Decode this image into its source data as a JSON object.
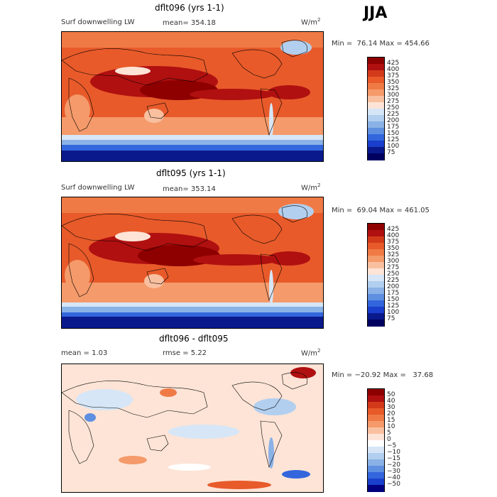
{
  "season": "JJA",
  "panels": [
    {
      "title": "dflt096 (yrs 1-1)",
      "left_label": "Surf downwelling LW",
      "mean_label": "mean= 354.18",
      "units": "W/m",
      "units_sup": "2",
      "stats": "Min =  76.14 Max = 454.66",
      "colorbar": {
        "labels": [
          "425",
          "400",
          "375",
          "350",
          "325",
          "300",
          "275",
          "250",
          "225",
          "200",
          "175",
          "150",
          "125",
          "100",
          "75"
        ],
        "colors": [
          "#8e0000",
          "#b01010",
          "#d23a1a",
          "#e85a2a",
          "#f07a45",
          "#f59a6a",
          "#f9c0a0",
          "#fde4d6",
          "#d6e6f7",
          "#b2cfef",
          "#8ab2e6",
          "#5f8fe0",
          "#3366dd",
          "#1a3fcc",
          "#0a1a8c",
          "#000060"
        ]
      }
    },
    {
      "title": "dflt095 (yrs 1-1)",
      "left_label": "Surf downwelling LW",
      "mean_label": "mean= 353.14",
      "units": "W/m",
      "units_sup": "2",
      "stats": "Min =  69.04 Max = 461.05",
      "colorbar": {
        "labels": [
          "425",
          "400",
          "375",
          "350",
          "325",
          "300",
          "275",
          "250",
          "225",
          "200",
          "175",
          "150",
          "125",
          "100",
          "75"
        ],
        "colors": [
          "#8e0000",
          "#b01010",
          "#d23a1a",
          "#e85a2a",
          "#f07a45",
          "#f59a6a",
          "#f9c0a0",
          "#fde4d6",
          "#d6e6f7",
          "#b2cfef",
          "#8ab2e6",
          "#5f8fe0",
          "#3366dd",
          "#1a3fcc",
          "#0a1a8c",
          "#000060"
        ]
      }
    },
    {
      "title": "dflt096 - dflt095",
      "left_label": "mean =    1.03",
      "mean_label": "rmse =    5.22",
      "units": "W/m",
      "units_sup": "2",
      "stats": "Min = −20.92 Max =   37.68",
      "colorbar": {
        "labels": [
          "50",
          "40",
          "30",
          "20",
          "15",
          "10",
          "5",
          "0",
          "−5",
          "−10",
          "−15",
          "−20",
          "−30",
          "−40",
          "−50"
        ],
        "colors": [
          "#8e0000",
          "#b01010",
          "#d23a1a",
          "#e85a2a",
          "#f07a45",
          "#f59a6a",
          "#f9c0a0",
          "#fde4d6",
          "#ffffff",
          "#d6e6f7",
          "#b2cfef",
          "#8ab2e6",
          "#5f8fe0",
          "#3366dd",
          "#1a3fcc",
          "#000080"
        ]
      }
    }
  ]
}
